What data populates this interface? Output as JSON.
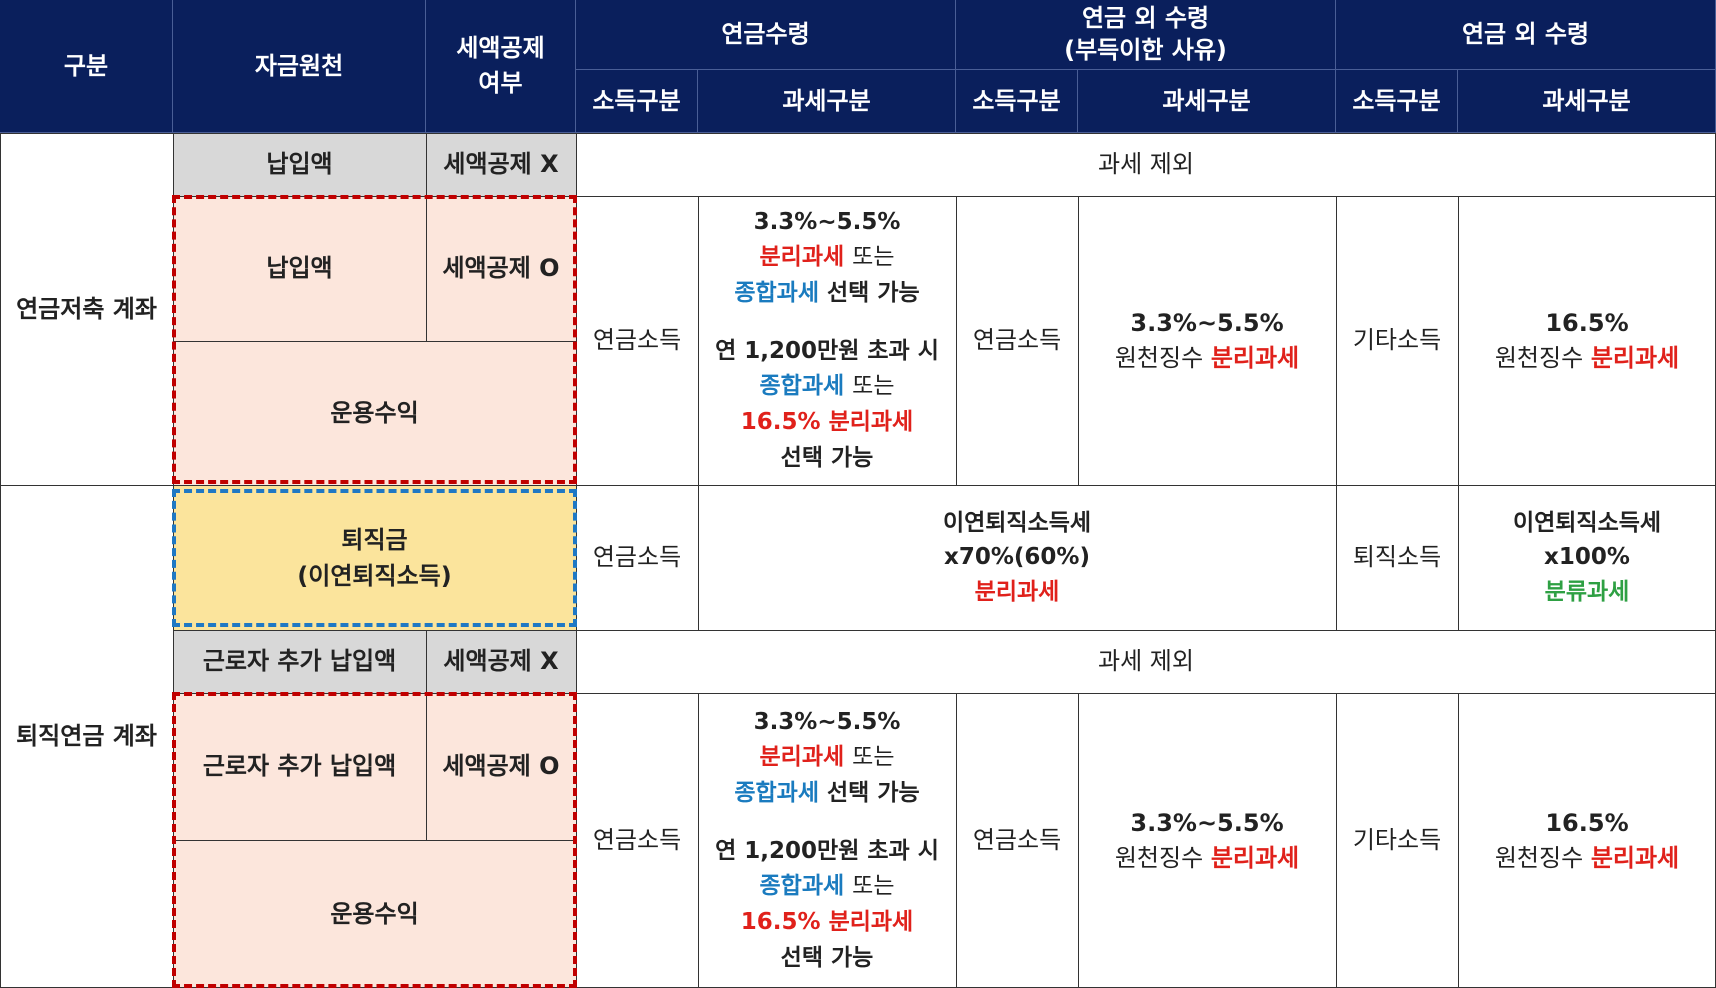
{
  "header": {
    "category": "구분",
    "source": "자금원천",
    "deduction_l1": "세액공제",
    "deduction_l2": "여부",
    "pension": "연금수령",
    "non_pension_unavoidable_l1": "연금 외 수령",
    "non_pension_unavoidable_l2": "(부득이한 사유)",
    "non_pension": "연금 외 수령",
    "income_type": "소득구분",
    "tax_type": "과세구분"
  },
  "annuity_account": {
    "label": "연금저축 계좌",
    "contribution_no_deduction": {
      "source": "납입액",
      "deduction": "세액공제 X",
      "tax": "과세 제외"
    },
    "contribution_deduction": {
      "source": "납입액",
      "deduction": "세액공제 O"
    },
    "investment_income": "운용수익",
    "pension": {
      "income": "연금소득",
      "rate": "3.3%~5.5%",
      "separate": "분리과세",
      "or": "또는",
      "comprehensive": "종합과세",
      "choice": "선택 가능",
      "threshold": "연 1,200만원 초과 시",
      "alt_rate": "16.5%",
      "choice2": "선택 가능"
    },
    "unavoidable": {
      "income": "연금소득",
      "rate": "3.3%~5.5%",
      "withholding": "원천징수",
      "separate": "분리과세"
    },
    "other": {
      "income": "기타소득",
      "rate": "16.5%",
      "withholding": "원천징수",
      "separate": "분리과세"
    }
  },
  "retirement_account": {
    "label": "퇴직연금 계좌",
    "severance": {
      "source_l1": "퇴직금",
      "source_l2": "(이연퇴직소득)",
      "pension_income": "연금소득",
      "pension_tax_l1": "이연퇴직소득세",
      "pension_tax_l2": "x70%(60%)",
      "pension_tax_l3": "분리과세",
      "other_income": "퇴직소득",
      "other_tax_l1": "이연퇴직소득세",
      "other_tax_l2": "x100%",
      "other_tax_l3": "분류과세"
    },
    "worker_no_deduction": {
      "source": "근로자 추가 납입액",
      "deduction": "세액공제 X",
      "tax": "과세 제외"
    },
    "worker_deduction": {
      "source": "근로자 추가 납입액",
      "deduction": "세액공제 O"
    },
    "investment_income": "운용수익",
    "pension": {
      "income": "연금소득",
      "rate": "3.3%~5.5%",
      "separate": "분리과세",
      "or": "또는",
      "comprehensive": "종합과세",
      "choice": "선택 가능",
      "threshold": "연 1,200만원 초과 시",
      "alt_rate": "16.5%",
      "choice2": "선택 가능"
    },
    "unavoidable": {
      "income": "연금소득",
      "rate": "3.3%~5.5%",
      "withholding": "원천징수",
      "separate": "분리과세"
    },
    "other": {
      "income": "기타소득",
      "rate": "16.5%",
      "withholding": "원천징수",
      "separate": "분리과세"
    }
  },
  "colors": {
    "header_bg": "#0a1f5c",
    "red_text": "#e0211b",
    "blue_text": "#1a7bbf",
    "green_text": "#2ea043",
    "pink_bg": "#fce6dc",
    "yellow_bg": "#fbe49c",
    "gray_bg": "#d8d8d8"
  }
}
